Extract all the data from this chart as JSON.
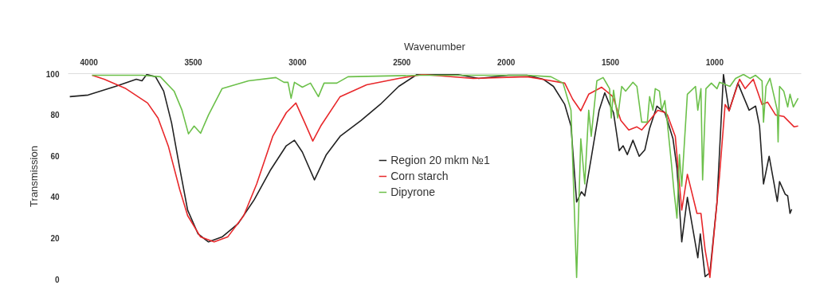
{
  "chart_data": {
    "type": "line",
    "xlabel": "Wavenumber",
    "ylabel": "Transmission",
    "xlim": [
      4100,
      585
    ],
    "ylim": [
      0,
      100
    ],
    "xticks": [
      4000,
      3500,
      3000,
      2500,
      2000,
      1500,
      1000
    ],
    "yticks": [
      0,
      20,
      40,
      60,
      80,
      100
    ],
    "legend": "center",
    "line_style": "solid",
    "series": [
      {
        "name": "Region 20 mkm №1",
        "color": "#222222",
        "x": [
          4092,
          4004,
          3873,
          3773,
          3746,
          3723,
          3681,
          3642,
          3604,
          3565,
          3527,
          3477,
          3427,
          3362,
          3285,
          3208,
          3131,
          3054,
          3015,
          2977,
          2965,
          2919,
          2862,
          2796,
          2696,
          2604,
          2515,
          2427,
          2235,
          2131,
          1989,
          1900,
          1823,
          1773,
          1719,
          1689,
          1662,
          1639,
          1623,
          1592,
          1554,
          1527,
          1504,
          1485,
          1458,
          1439,
          1419,
          1392,
          1362,
          1335,
          1312,
          1277,
          1239,
          1227,
          1200,
          1181,
          1158,
          1131,
          1081,
          1069,
          1046,
          1023,
          989,
          958,
          931,
          889,
          835,
          804,
          785,
          766,
          739,
          700,
          689,
          662,
          650,
          639,
          631
        ],
        "values": [
          88.8,
          89.6,
          93.8,
          97.3,
          96.5,
          99.6,
          98.5,
          91.5,
          76,
          54,
          33.6,
          22,
          18.1,
          20.5,
          27,
          38.6,
          52.9,
          64.9,
          67.6,
          61.8,
          59,
          48.3,
          60.6,
          69.5,
          77.2,
          85,
          93.8,
          99.6,
          99.6,
          97.7,
          99.2,
          99.2,
          97.3,
          93.8,
          85,
          74.5,
          37.5,
          42.5,
          40.5,
          59,
          82.2,
          90.7,
          85,
          81,
          62.5,
          64.9,
          60.6,
          67.6,
          59.8,
          62.9,
          73.4,
          84.2,
          81,
          77.2,
          68.3,
          54,
          18.1,
          39.8,
          10.4,
          22,
          1.2,
          3.1,
          37.5,
          99.6,
          81.9,
          95.4,
          82.2,
          84.2,
          74.5,
          46.3,
          59.8,
          37.8,
          47.5,
          41.3,
          40.5,
          32,
          34
        ]
      },
      {
        "name": "Corn starch",
        "color": "#e8282b",
        "x": [
          3985,
          3927,
          3823,
          3719,
          3669,
          3619,
          3565,
          3527,
          3465,
          3400,
          3335,
          3258,
          3196,
          3119,
          3054,
          3008,
          2965,
          2927,
          2889,
          2796,
          2669,
          2515,
          2400,
          2158,
          1900,
          1850,
          1719,
          1681,
          1642,
          1604,
          1542,
          1488,
          1450,
          1412,
          1373,
          1350,
          1312,
          1273,
          1235,
          1227,
          1189,
          1158,
          1131,
          1085,
          1066,
          1046,
          1023,
          977,
          950,
          931,
          881,
          854,
          815,
          773,
          746,
          708,
          669,
          619,
          600
        ],
        "values": [
          99.2,
          97.3,
          92.7,
          85.7,
          78.4,
          64.5,
          43.6,
          30.9,
          20.5,
          18.1,
          20.5,
          30.9,
          46.3,
          69.5,
          81,
          85.7,
          76,
          67.2,
          74.5,
          88.8,
          94.6,
          97.7,
          99.6,
          97.7,
          98.5,
          97.7,
          95.4,
          87.6,
          81.9,
          90,
          93.4,
          88.8,
          77.2,
          72.6,
          74.1,
          72.6,
          77.2,
          82.2,
          81,
          79.9,
          69.5,
          33.6,
          51,
          32,
          32,
          14.3,
          0.8,
          50.2,
          85,
          81.9,
          97.3,
          92.7,
          97.3,
          85,
          86.1,
          79.9,
          79.2,
          74.1,
          74.5
        ]
      },
      {
        "name": "Dipyrone",
        "color": "#6cc04a",
        "x": [
          3985,
          3746,
          3658,
          3592,
          3554,
          3523,
          3496,
          3465,
          3427,
          3362,
          3235,
          3104,
          3065,
          3046,
          3031,
          3015,
          2977,
          2938,
          2900,
          2873,
          2812,
          2758,
          2412,
          1900,
          1785,
          1727,
          1689,
          1662,
          1642,
          1623,
          1604,
          1592,
          1565,
          1535,
          1504,
          1496,
          1485,
          1465,
          1446,
          1427,
          1392,
          1373,
          1350,
          1323,
          1312,
          1296,
          1285,
          1265,
          1254,
          1239,
          1227,
          1208,
          1196,
          1181,
          1169,
          1158,
          1131,
          1092,
          1081,
          1066,
          1058,
          1042,
          1016,
          989,
          977,
          927,
          900,
          862,
          831,
          804,
          773,
          766,
          754,
          735,
          700,
          696,
          689,
          669,
          650,
          639,
          623,
          600
        ],
        "values": [
          99.2,
          99.2,
          98.5,
          91.5,
          82.2,
          70.7,
          74.5,
          71,
          79.9,
          92.7,
          96.5,
          98.1,
          95.8,
          95.8,
          88,
          95.8,
          93.4,
          95.4,
          88.8,
          95.4,
          95.4,
          98.5,
          99.2,
          99.2,
          98.5,
          95.4,
          82.2,
          0.8,
          68.3,
          46.3,
          82.2,
          69.5,
          96.5,
          98.1,
          92.7,
          78.4,
          91.9,
          78.4,
          93.8,
          91.5,
          95.8,
          93.8,
          76.4,
          76.4,
          88.8,
          82.2,
          92.7,
          91.5,
          82.2,
          86.9,
          76,
          56.8,
          43.6,
          29.7,
          60.6,
          45.2,
          90,
          93.8,
          82.2,
          92.7,
          48.3,
          92.7,
          95.4,
          92.7,
          95.8,
          93.8,
          97.7,
          99.6,
          97.7,
          99.2,
          96.5,
          76.4,
          93.8,
          97.7,
          82.2,
          66.8,
          93.8,
          91.5,
          83.8,
          90,
          83.8,
          88
        ]
      }
    ]
  }
}
